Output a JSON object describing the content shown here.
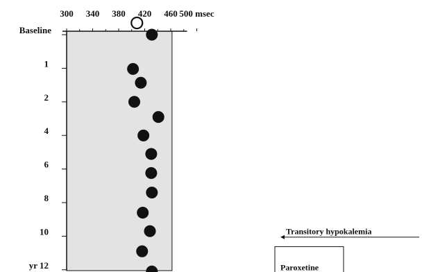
{
  "chart_data": {
    "type": "scatter",
    "x_axis": {
      "ticks": [
        300,
        340,
        380,
        420,
        460,
        500
      ],
      "tick_labels": [
        "300",
        "340",
        "380",
        "420",
        "460",
        "500 msec"
      ],
      "range": [
        300,
        500
      ],
      "position": "top"
    },
    "y_axis": {
      "tick_labels": [
        "Baseline",
        "1",
        "2",
        "4",
        "6",
        "8",
        "10",
        "yr 12"
      ],
      "tick_positions": [
        0,
        1,
        2,
        3,
        4,
        5,
        6,
        7
      ],
      "range": [
        0,
        7
      ],
      "direction": "downward"
    },
    "shaded_band": {
      "x_range": [
        300,
        462
      ],
      "fill": "#e3e3e3"
    },
    "points": [
      {
        "y": -0.35,
        "x": 408,
        "style": "open"
      },
      {
        "y": 0.0,
        "x": 431,
        "style": "filled"
      },
      {
        "y": 1.02,
        "x": 402,
        "style": "filled"
      },
      {
        "y": 1.43,
        "x": 414,
        "style": "filled"
      },
      {
        "y": 2.0,
        "x": 404,
        "style": "filled"
      },
      {
        "y": 2.45,
        "x": 441,
        "style": "filled"
      },
      {
        "y": 3.0,
        "x": 418,
        "style": "filled"
      },
      {
        "y": 3.55,
        "x": 430,
        "style": "filled"
      },
      {
        "y": 4.12,
        "x": 430,
        "style": "filled"
      },
      {
        "y": 4.7,
        "x": 431,
        "style": "filled"
      },
      {
        "y": 5.3,
        "x": 417,
        "style": "filled"
      },
      {
        "y": 5.85,
        "x": 428,
        "style": "filled"
      },
      {
        "y": 6.45,
        "x": 416,
        "style": "filled"
      },
      {
        "y": 7.05,
        "x": 431,
        "style": "filled"
      }
    ],
    "annotations": [
      {
        "text": "Transitory hypokalemia",
        "y": 5.8,
        "arrow": "left"
      },
      {
        "text": "Paroxetine",
        "y": 6.6,
        "boxed": true
      }
    ],
    "grid": false,
    "legend": "none"
  },
  "colors": {
    "band": "#e3e3e3",
    "ink": "#111111"
  }
}
